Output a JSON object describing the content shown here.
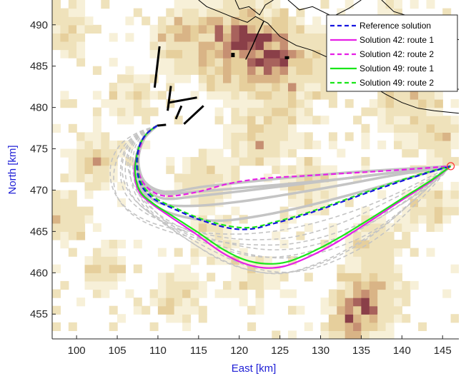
{
  "chart_data": {
    "type": "line",
    "title": "",
    "xlabel": "East [km]",
    "ylabel": "North [km]",
    "xlim": [
      97,
      147
    ],
    "ylim": [
      452,
      493
    ],
    "xticks": [
      100,
      105,
      110,
      115,
      120,
      125,
      130,
      135,
      140,
      145
    ],
    "yticks": [
      455,
      460,
      465,
      470,
      475,
      480,
      485,
      490
    ],
    "xtick_labels": [
      "100",
      "105",
      "110",
      "115",
      "120",
      "125",
      "130",
      "135",
      "140",
      "145"
    ],
    "ytick_labels": [
      "455",
      "460",
      "465",
      "470",
      "475",
      "480",
      "485",
      "490"
    ],
    "grid": false,
    "legend_position": "top-right",
    "background": "terrain density heatmap (light beige to dark maroon) with coastline outlines at top-right",
    "colors": {
      "reference": "#1515e0",
      "sol42": "#e61ee6",
      "sol49": "#19e619",
      "candidates": "#c4c4c4",
      "target": "#ff3b3b",
      "coast": "#000000"
    },
    "series": [
      {
        "name": "Reference solution",
        "style": "dashed",
        "color": "#1515e0",
        "x": [
          109.9,
          108.6,
          107.7,
          107.4,
          107.9,
          109.4,
          111.8,
          115.2,
          118.8,
          121.5,
          124.0,
          127.0,
          131.0,
          135.5,
          140.0,
          143.5,
          146.0
        ],
        "y": [
          477.8,
          476.8,
          475.3,
          473.0,
          470.7,
          469.0,
          467.8,
          466.4,
          465.4,
          465.3,
          465.9,
          466.7,
          468.0,
          469.6,
          471.1,
          472.2,
          472.9
        ]
      },
      {
        "name": "Solution 42: route 1",
        "style": "solid",
        "color": "#e61ee6",
        "x": [
          109.9,
          108.6,
          107.6,
          107.1,
          107.7,
          109.3,
          111.8,
          114.8,
          117.8,
          120.4,
          123.0,
          125.6,
          128.5,
          132.0,
          136.0,
          140.0,
          143.5,
          146.0
        ],
        "y": [
          477.8,
          476.8,
          475.0,
          472.2,
          469.8,
          468.3,
          466.6,
          464.6,
          462.5,
          461.2,
          460.6,
          460.8,
          461.9,
          463.7,
          466.2,
          468.8,
          471.0,
          472.9
        ]
      },
      {
        "name": "Solution 42: route 2",
        "style": "dashed",
        "color": "#e61ee6",
        "x": [
          109.9,
          108.6,
          107.7,
          107.6,
          108.6,
          110.8,
          114.5,
          118.8,
          122.8,
          127.5,
          132.5,
          137.5,
          142.0,
          146.0
        ],
        "y": [
          477.8,
          476.8,
          474.8,
          472.4,
          470.4,
          469.3,
          469.7,
          470.8,
          471.4,
          471.7,
          472.0,
          472.3,
          472.6,
          472.9
        ]
      },
      {
        "name": "Solution 49: route 1",
        "style": "solid",
        "color": "#19e619",
        "x": [
          109.9,
          108.6,
          107.6,
          107.2,
          107.8,
          109.4,
          111.9,
          114.9,
          117.9,
          120.6,
          123.2,
          125.8,
          128.7,
          132.2,
          136.2,
          140.2,
          143.6,
          146.0
        ],
        "y": [
          477.8,
          476.8,
          475.0,
          472.3,
          469.9,
          468.4,
          466.8,
          464.9,
          462.9,
          461.6,
          461.1,
          461.3,
          462.4,
          464.2,
          466.6,
          469.1,
          471.2,
          472.9
        ]
      },
      {
        "name": "Solution 49: route 2",
        "style": "dashed",
        "color": "#19e619",
        "x": [
          109.9,
          108.6,
          107.7,
          107.5,
          108.0,
          109.6,
          112.0,
          115.4,
          119.0,
          121.7,
          124.2,
          127.2,
          131.2,
          135.7,
          140.2,
          143.6,
          146.0
        ],
        "y": [
          477.8,
          476.8,
          475.3,
          473.0,
          470.8,
          469.1,
          467.9,
          466.5,
          465.6,
          465.5,
          466.1,
          466.9,
          468.2,
          469.8,
          471.3,
          472.3,
          472.9
        ]
      }
    ],
    "candidate_routes": [
      {
        "style": "solid",
        "x": [
          109.9,
          108.3,
          107.6,
          108.4,
          111.0,
          115.5,
          121.0,
          127.0,
          133.0,
          139.0,
          146.0
        ],
        "y": [
          477.8,
          476.2,
          473.6,
          471.0,
          469.8,
          470.4,
          471.0,
          471.6,
          472.1,
          472.5,
          472.9
        ]
      },
      {
        "style": "solid",
        "x": [
          109.9,
          108.3,
          107.5,
          108.2,
          110.6,
          115.0,
          120.5,
          126.5,
          133.0,
          139.5,
          146.0
        ],
        "y": [
          477.8,
          476.2,
          473.4,
          470.6,
          469.0,
          469.3,
          469.9,
          470.6,
          471.4,
          472.2,
          472.9
        ]
      },
      {
        "style": "solid",
        "x": [
          109.9,
          108.3,
          107.5,
          108.1,
          110.3,
          114.5,
          120.0,
          126.0,
          132.5,
          139.0,
          146.0
        ],
        "y": [
          477.8,
          476.2,
          473.3,
          470.3,
          468.4,
          468.1,
          468.6,
          469.5,
          470.6,
          471.8,
          472.9
        ]
      },
      {
        "style": "solid",
        "x": [
          109.9,
          108.3,
          107.5,
          108.0,
          110.0,
          113.5,
          117.5,
          122.0,
          128.0,
          135.0,
          141.0,
          146.0
        ],
        "y": [
          477.8,
          476.2,
          473.3,
          470.1,
          467.9,
          466.7,
          466.3,
          466.8,
          468.0,
          469.8,
          471.5,
          472.9
        ]
      },
      {
        "style": "solid",
        "x": [
          109.9,
          108.3,
          107.6,
          108.2,
          110.5,
          114.5,
          119.5,
          125.5,
          132.0,
          139.0,
          146.0
        ],
        "y": [
          477.8,
          476.2,
          473.6,
          470.9,
          469.6,
          469.8,
          470.2,
          470.7,
          471.3,
          472.1,
          472.9
        ]
      },
      {
        "style": "dashed",
        "x": [
          109.9,
          107.5,
          105.6,
          104.6,
          105.0,
          107.2,
          111.0,
          116.0,
          121.5,
          127.0,
          133.0,
          139.0,
          143.5,
          146.0
        ],
        "y": [
          477.8,
          476.8,
          475.0,
          472.2,
          469.2,
          466.8,
          465.1,
          464.0,
          463.4,
          463.6,
          465.2,
          467.8,
          470.6,
          472.9
        ]
      },
      {
        "style": "dashed",
        "x": [
          109.9,
          107.6,
          106.0,
          105.4,
          106.0,
          108.2,
          112.0,
          116.5,
          121.0,
          125.5,
          130.5,
          136.0,
          141.0,
          146.0
        ],
        "y": [
          477.8,
          476.8,
          475.0,
          472.3,
          469.6,
          467.4,
          465.6,
          463.7,
          462.3,
          461.8,
          462.6,
          464.8,
          468.4,
          472.9
        ]
      },
      {
        "style": "dashed",
        "x": [
          109.9,
          107.8,
          106.4,
          106.0,
          106.8,
          109.0,
          112.5,
          116.5,
          120.5,
          124.5,
          128.5,
          133.0,
          137.5,
          142.0,
          146.0
        ],
        "y": [
          477.8,
          476.8,
          474.8,
          472.0,
          469.4,
          467.2,
          465.0,
          462.8,
          461.0,
          460.1,
          460.4,
          462.0,
          464.6,
          468.6,
          472.9
        ]
      },
      {
        "style": "dashed",
        "x": [
          109.9,
          108.0,
          106.8,
          106.6,
          107.4,
          109.6,
          113.0,
          117.0,
          121.0,
          124.8,
          128.4,
          132.5,
          137.0,
          141.5,
          146.0
        ],
        "y": [
          477.8,
          476.8,
          474.8,
          472.0,
          469.2,
          466.8,
          464.4,
          462.0,
          460.4,
          459.9,
          460.6,
          462.2,
          465.0,
          468.8,
          472.9
        ]
      },
      {
        "style": "dashed",
        "x": [
          109.9,
          108.2,
          107.1,
          107.0,
          108.0,
          110.3,
          113.8,
          117.8,
          121.8,
          125.5,
          129.0,
          133.0,
          137.5,
          142.0,
          146.0
        ],
        "y": [
          477.8,
          476.8,
          474.8,
          471.8,
          468.9,
          466.4,
          463.9,
          461.5,
          460.2,
          460.0,
          460.9,
          462.7,
          465.5,
          469.2,
          472.9
        ]
      },
      {
        "style": "dashed",
        "x": [
          109.9,
          108.0,
          106.6,
          106.4,
          107.6,
          110.2,
          114.0,
          118.5,
          123.5,
          128.5,
          134.0,
          139.5,
          143.5,
          146.0
        ],
        "y": [
          477.8,
          476.8,
          475.0,
          472.4,
          469.6,
          467.0,
          465.0,
          463.6,
          462.8,
          463.2,
          465.0,
          468.0,
          470.8,
          472.9
        ]
      },
      {
        "style": "dashed",
        "x": [
          109.9,
          107.4,
          105.3,
          104.2,
          104.5,
          106.4,
          110.0,
          115.0,
          120.5,
          126.0,
          132.0,
          138.0,
          143.0,
          146.0
        ],
        "y": [
          477.8,
          476.9,
          475.4,
          473.0,
          470.1,
          467.6,
          465.8,
          464.9,
          464.7,
          465.3,
          466.8,
          469.0,
          471.4,
          472.9
        ]
      },
      {
        "style": "dashed",
        "x": [
          109.9,
          107.8,
          106.2,
          105.6,
          106.4,
          108.8,
          112.6,
          117.3,
          122.0,
          127.0,
          132.5,
          138.0,
          142.8,
          146.0
        ],
        "y": [
          477.8,
          476.8,
          475.0,
          472.5,
          469.8,
          467.4,
          465.6,
          464.4,
          464.0,
          464.4,
          466.0,
          468.5,
          471.0,
          472.9
        ]
      },
      {
        "style": "dashed",
        "x": [
          109.9,
          108.4,
          107.4,
          107.3,
          108.4,
          110.8,
          114.5,
          118.8,
          123.0,
          127.0,
          131.0,
          135.5,
          140.0,
          143.5,
          146.0
        ],
        "y": [
          477.8,
          476.8,
          474.8,
          471.9,
          469.0,
          466.4,
          464.2,
          462.6,
          461.9,
          462.2,
          463.4,
          465.6,
          468.4,
          470.9,
          472.9
        ]
      }
    ],
    "start_point": {
      "x": 109.9,
      "y": 477.8
    },
    "target_point": {
      "x": 146.0,
      "y": 472.9
    }
  }
}
